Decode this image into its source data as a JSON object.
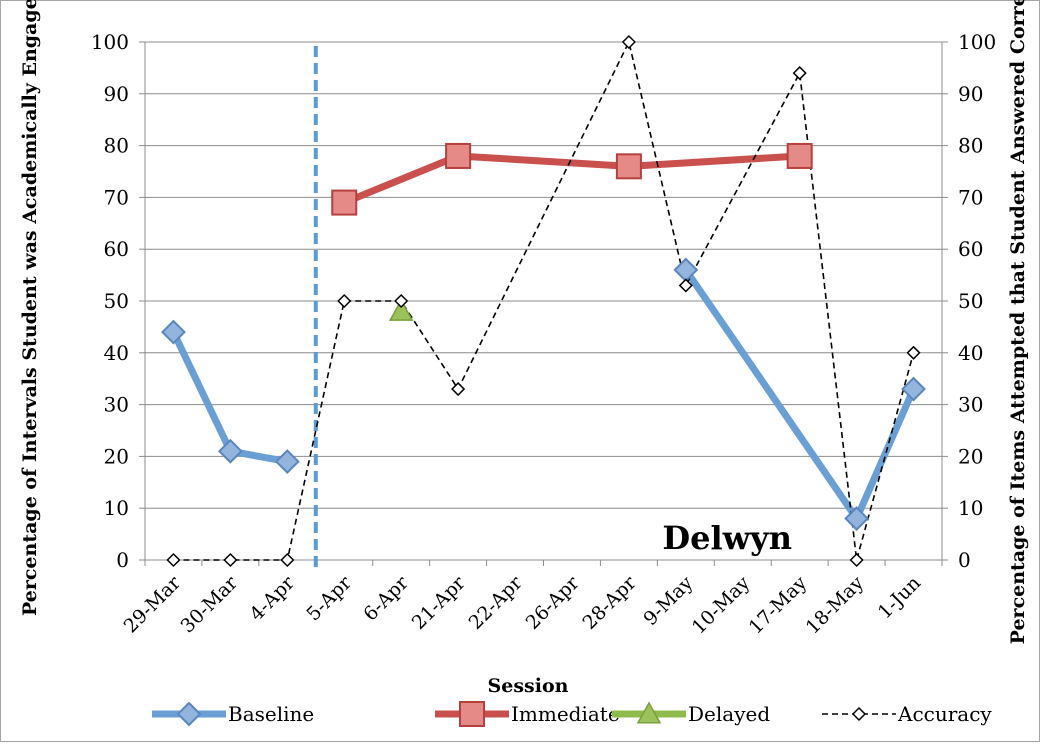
{
  "chart_data": {
    "type": "line",
    "categories": [
      "29-Mar",
      "30-Mar",
      "4-Apr",
      "5-Apr",
      "6-Apr",
      "21-Apr",
      "22-Apr",
      "26-Apr",
      "28-Apr",
      "9-May",
      "10-May",
      "17-May",
      "18-May",
      "1-Jun"
    ],
    "xlabel": "Session",
    "ylabel": "Percentage of Intervals Student was Academically Engaged",
    "y2label": "Percentage of Items Attempted that Student Answered Correctly",
    "ylim": [
      0,
      100
    ],
    "y2lim": [
      0,
      100
    ],
    "yticks": [
      0,
      10,
      20,
      30,
      40,
      50,
      60,
      70,
      80,
      90,
      100
    ],
    "y2ticks": [
      0,
      10,
      20,
      30,
      40,
      50,
      60,
      70,
      80,
      90,
      100
    ],
    "grid": true,
    "legend_position": "bottom",
    "annotation": "Delwyn",
    "phase_change_after": "4-Apr",
    "series": [
      {
        "name": "Baseline",
        "color": "#6a9fd4",
        "marker": "diamond",
        "points": [
          [
            "29-Mar",
            44
          ],
          [
            "30-Mar",
            21
          ],
          [
            "4-Apr",
            19
          ],
          [
            "9-May",
            56
          ],
          [
            "18-May",
            8
          ],
          [
            "1-Jun",
            33
          ]
        ],
        "segments": [
          [
            "29-Mar",
            "30-Mar",
            "4-Apr"
          ],
          [
            "9-May",
            "18-May",
            "1-Jun"
          ]
        ]
      },
      {
        "name": "Immediate",
        "color": "#c9504c",
        "marker": "square",
        "points": [
          [
            "5-Apr",
            69
          ],
          [
            "21-Apr",
            78
          ],
          [
            "28-Apr",
            76
          ],
          [
            "17-May",
            78
          ]
        ],
        "segments": [
          [
            "5-Apr",
            "21-Apr",
            "28-Apr",
            "17-May"
          ]
        ]
      },
      {
        "name": "Delayed",
        "color": "#8fba4c",
        "marker": "triangle",
        "points": [
          [
            "6-Apr",
            48
          ]
        ],
        "segments": [
          [
            "6-Apr"
          ]
        ]
      },
      {
        "name": "Accuracy",
        "color": "#000000",
        "marker": "open-diamond",
        "dashed": true,
        "points": [
          [
            "29-Mar",
            0
          ],
          [
            "30-Mar",
            0
          ],
          [
            "4-Apr",
            0
          ],
          [
            "5-Apr",
            50
          ],
          [
            "6-Apr",
            50
          ],
          [
            "21-Apr",
            33
          ],
          [
            "28-Apr",
            100
          ],
          [
            "9-May",
            53
          ],
          [
            "17-May",
            94
          ],
          [
            "18-May",
            0
          ],
          [
            "1-Jun",
            40
          ]
        ],
        "segments": [
          [
            "29-Mar",
            "30-Mar",
            "4-Apr",
            "5-Apr",
            "6-Apr",
            "21-Apr",
            "28-Apr",
            "9-May",
            "17-May",
            "18-May",
            "1-Jun"
          ]
        ]
      }
    ]
  }
}
